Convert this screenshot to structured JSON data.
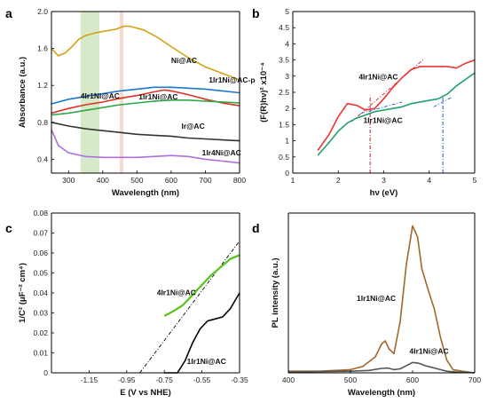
{
  "chart_data": [
    {
      "panel": "a",
      "type": "line",
      "xlabel": "Wavelength (nm)",
      "ylabel": "Absorbance (a.u.)",
      "xlim": [
        250,
        800
      ],
      "ylim": [
        0.25,
        2.0
      ],
      "xticks": [
        300,
        400,
        500,
        600,
        700,
        800
      ],
      "yticks": [
        0.4,
        0.8,
        1.2,
        1.6,
        2.0
      ],
      "yticklabels": [
        "0.4",
        "0.8",
        "1.2",
        "1.6",
        "2.0"
      ],
      "bands": [
        {
          "from": 335,
          "to": 390,
          "color": "#cfe6bf"
        },
        {
          "from": 450,
          "to": 460,
          "color": "#f5d2bf"
        }
      ],
      "series": [
        {
          "name": "Ni@AC",
          "color": "#d4a017",
          "label_x": 600,
          "label_y": 1.44,
          "x": [
            250,
            270,
            290,
            310,
            330,
            350,
            380,
            410,
            440,
            460,
            480,
            520,
            560,
            600,
            650,
            700,
            750,
            800
          ],
          "y": [
            1.6,
            1.52,
            1.55,
            1.62,
            1.7,
            1.74,
            1.77,
            1.79,
            1.81,
            1.84,
            1.84,
            1.8,
            1.72,
            1.62,
            1.5,
            1.4,
            1.33,
            1.26
          ]
        },
        {
          "name": "1Ir1Ni@AC-p",
          "color": "#1f77d0",
          "label_x": 710,
          "label_y": 1.23,
          "x": [
            250,
            300,
            350,
            400,
            450,
            500,
            550,
            600,
            650,
            700,
            750,
            800
          ],
          "y": [
            1.0,
            1.05,
            1.08,
            1.11,
            1.14,
            1.16,
            1.18,
            1.18,
            1.17,
            1.16,
            1.14,
            1.12
          ]
        },
        {
          "name": "1Ir1Ni@AC",
          "color": "#e0302a",
          "label_x": 505,
          "label_y": 1.05,
          "x": [
            250,
            300,
            350,
            400,
            450,
            500,
            550,
            580,
            600,
            650,
            700,
            750,
            800
          ],
          "y": [
            0.9,
            0.95,
            0.99,
            1.02,
            1.06,
            1.09,
            1.13,
            1.15,
            1.14,
            1.1,
            1.05,
            1.01,
            0.98
          ]
        },
        {
          "name": "4Ir1Ni@AC",
          "color": "#2fa84a",
          "label_x": 335,
          "label_y": 1.06,
          "x": [
            250,
            300,
            350,
            400,
            450,
            500,
            550,
            600,
            650,
            700,
            750,
            800
          ],
          "y": [
            0.88,
            0.9,
            0.93,
            0.96,
            0.99,
            1.01,
            1.03,
            1.04,
            1.04,
            1.03,
            1.02,
            1.01
          ]
        },
        {
          "name": "Ir@AC",
          "color": "#333333",
          "label_x": 630,
          "label_y": 0.73,
          "x": [
            250,
            300,
            350,
            400,
            450,
            500,
            550,
            600,
            650,
            700,
            750,
            800
          ],
          "y": [
            0.8,
            0.76,
            0.73,
            0.71,
            0.69,
            0.67,
            0.66,
            0.65,
            0.63,
            0.62,
            0.61,
            0.6
          ]
        },
        {
          "name": "1Ir4Ni@AC",
          "color": "#b06fd8",
          "label_x": 690,
          "label_y": 0.44,
          "x": [
            250,
            270,
            300,
            350,
            400,
            450,
            500,
            550,
            600,
            650,
            700,
            750,
            800
          ],
          "y": [
            0.72,
            0.55,
            0.47,
            0.43,
            0.42,
            0.42,
            0.42,
            0.43,
            0.44,
            0.43,
            0.4,
            0.38,
            0.36
          ]
        }
      ]
    },
    {
      "panel": "b",
      "type": "line",
      "xlabel": "hν (eV)",
      "ylabel": "(F(R)hν)² x10⁻⁴",
      "xlim": [
        1,
        5
      ],
      "ylim": [
        0,
        5
      ],
      "xticks": [
        1,
        2,
        3,
        4,
        5
      ],
      "yticks": [
        0,
        0.5,
        1,
        1.5,
        2,
        2.5,
        3,
        3.5,
        4,
        4.5,
        5
      ],
      "yticklabels": [
        "0",
        "0.5",
        "1",
        "1.5",
        "2",
        "2.5",
        "3",
        "3.5",
        "4",
        "4.5",
        "5"
      ],
      "verticals": [
        {
          "x": 2.7,
          "color": "#b22222"
        },
        {
          "x": 4.3,
          "color": "#2255cc"
        }
      ],
      "series": [
        {
          "name": "4Ir1Ni@AC",
          "color": "#ee3333",
          "label_x": 2.45,
          "label_y": 2.9,
          "x": [
            1.55,
            1.8,
            2.0,
            2.2,
            2.4,
            2.6,
            2.8,
            3.0,
            3.2,
            3.4,
            3.6,
            3.8,
            4.0,
            4.2,
            4.4,
            4.6,
            4.8,
            5.0
          ],
          "y": [
            0.7,
            1.2,
            1.75,
            2.15,
            2.1,
            1.95,
            2.0,
            2.3,
            2.65,
            2.95,
            3.2,
            3.3,
            3.3,
            3.3,
            3.3,
            3.25,
            3.4,
            3.5
          ]
        },
        {
          "name": "1Ir1Ni@AC",
          "color": "#22a06b",
          "label_x": 2.55,
          "label_y": 1.55,
          "x": [
            1.55,
            1.8,
            2.0,
            2.2,
            2.4,
            2.6,
            2.8,
            3.0,
            3.2,
            3.4,
            3.6,
            3.8,
            4.0,
            4.2,
            4.4,
            4.6,
            4.8,
            5.0
          ],
          "y": [
            0.55,
            0.95,
            1.3,
            1.55,
            1.7,
            1.8,
            1.9,
            1.95,
            2.0,
            2.05,
            2.15,
            2.2,
            2.25,
            2.3,
            2.45,
            2.7,
            2.9,
            3.1
          ]
        }
      ],
      "fits": [
        {
          "x": [
            2.3,
            3.9
          ],
          "y": [
            1.6,
            3.55
          ],
          "color": "#b22222"
        },
        {
          "x": [
            2.5,
            3.4
          ],
          "y": [
            1.85,
            2.2
          ],
          "color": "#2255cc"
        },
        {
          "x": [
            4.1,
            4.5
          ],
          "y": [
            2.05,
            2.35
          ],
          "color": "#2255cc"
        }
      ]
    },
    {
      "panel": "c",
      "type": "line",
      "xlabel": "E (V vs NHE)",
      "ylabel": "1/C² (μF⁻² cm⁴)",
      "xlim": [
        -1.35,
        -0.35
      ],
      "ylim": [
        0,
        0.08
      ],
      "xticks": [
        -1.15,
        -0.95,
        -0.75,
        -0.55,
        -0.35
      ],
      "yticks": [
        0,
        0.01,
        0.02,
        0.03,
        0.04,
        0.05,
        0.06,
        0.07,
        0.08
      ],
      "yticklabels": [
        "0",
        "0.01",
        "0.02",
        "0.03",
        "0.04",
        "0.05",
        "0.06",
        "0.07",
        "0.08"
      ],
      "series": [
        {
          "name": "4Ir1Ni@AC",
          "color": "#55c41a",
          "label_x": -0.79,
          "label_y": 0.039,
          "x": [
            -0.75,
            -0.7,
            -0.65,
            -0.6,
            -0.55,
            -0.5,
            -0.45,
            -0.4,
            -0.35
          ],
          "y": [
            0.0285,
            0.031,
            0.034,
            0.039,
            0.044,
            0.049,
            0.053,
            0.057,
            0.059
          ]
        },
        {
          "name": "1Ir1Ni@AC",
          "color": "#000000",
          "label_x": -0.63,
          "label_y": 0.0045,
          "x": [
            -0.75,
            -0.68,
            -0.64,
            -0.6,
            -0.56,
            -0.52,
            -0.48,
            -0.44,
            -0.4,
            -0.35
          ],
          "y": [
            0.0,
            0.0,
            0.006,
            0.015,
            0.022,
            0.026,
            0.027,
            0.028,
            0.032,
            0.04
          ]
        }
      ],
      "fits": [
        {
          "x": [
            -0.88,
            -0.35
          ],
          "y": [
            0.0,
            0.066
          ],
          "color": "#000000"
        }
      ]
    },
    {
      "panel": "d",
      "type": "line",
      "xlabel": "Wavelength (nm)",
      "ylabel": "PL intensity (a.u.)",
      "xlim": [
        400,
        700
      ],
      "ylim": [
        0,
        1.0
      ],
      "xticks": [
        400,
        500,
        600,
        700
      ],
      "yticks": [],
      "series": [
        {
          "name": "1Ir1Ni@AC",
          "color": "#a0682a",
          "label_x": 510,
          "label_y": 0.45,
          "x": [
            400,
            450,
            500,
            520,
            540,
            550,
            556,
            562,
            570,
            580,
            590,
            600,
            608,
            615,
            625,
            635,
            645,
            655,
            665,
            680,
            700
          ],
          "y": [
            0.01,
            0.01,
            0.02,
            0.04,
            0.1,
            0.18,
            0.2,
            0.15,
            0.12,
            0.32,
            0.68,
            0.92,
            0.85,
            0.65,
            0.52,
            0.4,
            0.22,
            0.08,
            0.02,
            0.01,
            0.0
          ]
        },
        {
          "name": "4Ir1Ni@AC",
          "color": "#555555",
          "label_x": 595,
          "label_y": 0.12,
          "x": [
            400,
            450,
            500,
            530,
            550,
            560,
            570,
            580,
            590,
            600,
            610,
            620,
            630,
            640,
            655,
            670,
            700
          ],
          "y": [
            0.005,
            0.008,
            0.01,
            0.015,
            0.028,
            0.03,
            0.02,
            0.025,
            0.045,
            0.065,
            0.06,
            0.045,
            0.035,
            0.025,
            0.01,
            0.005,
            0.0
          ]
        }
      ]
    }
  ]
}
